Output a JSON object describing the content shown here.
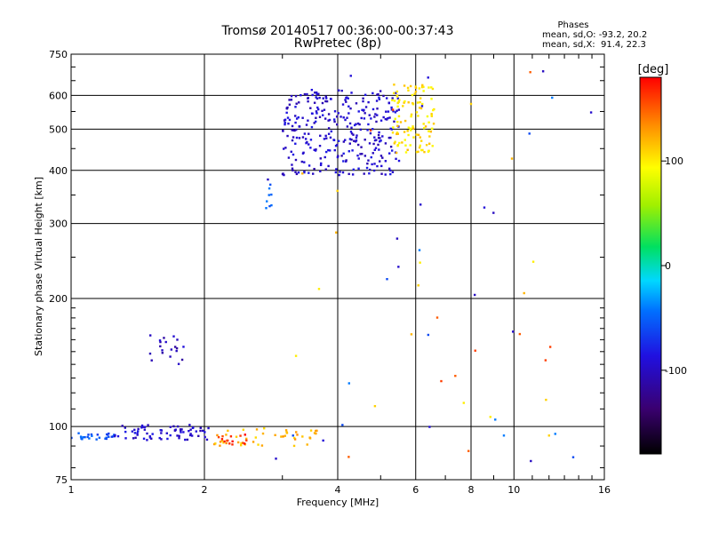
{
  "chart_data": {
    "type": "scatter",
    "title": "Tromsø 20140517 00:36:00-00:37:43",
    "subtitle": "RwPretec (8p)",
    "xlabel": "Frequency [MHz]",
    "ylabel": "Stationary phase Virtual Height [km]",
    "x_scale": "log2",
    "y_scale": "log",
    "xlim": [
      1,
      16
    ],
    "ylim": [
      75,
      750
    ],
    "x_ticks": [
      1,
      2,
      4,
      6,
      8,
      10,
      16
    ],
    "x_tick_labels": [
      "1",
      "2",
      "4",
      "6",
      "8",
      "10",
      "16"
    ],
    "y_ticks": [
      75,
      100,
      200,
      300,
      400,
      500,
      600,
      750
    ],
    "y_tick_labels": [
      "75",
      "100",
      "200",
      "300",
      "400",
      "500",
      "600",
      "750"
    ],
    "grid": true,
    "phases_box": {
      "title": "Phases",
      "line1": "mean, sd,O: -93.2, 20.2",
      "line2": "mean, sd,X:  91.4, 22.3"
    },
    "colorbar": {
      "label": "[deg]",
      "range": [
        -180,
        180
      ],
      "ticks": [
        100,
        0,
        -100
      ],
      "tick_labels": [
        "100",
        "0",
        "-100"
      ],
      "colormap": "rainbow (black-purple-blue-cyan-green-yellow-orange-red)"
    },
    "color_key": "phase_deg",
    "groups": [
      {
        "description": "E-layer cyan",
        "x_range": [
          1.0,
          1.25
        ],
        "y_range": [
          93,
          97
        ],
        "phase_deg": -55,
        "count": 25
      },
      {
        "description": "E-layer blue",
        "x_range": [
          1.25,
          2.05
        ],
        "y_range": [
          93,
          101
        ],
        "phase_deg": -95,
        "count": 70
      },
      {
        "description": "E-layer orange/yellow",
        "x_range": [
          2.1,
          3.6
        ],
        "y_range": [
          90,
          100
        ],
        "phase_deg": 120,
        "count": 45
      },
      {
        "description": "E-layer red",
        "x_range": [
          2.15,
          2.5
        ],
        "y_range": [
          90,
          96
        ],
        "phase_deg": 165,
        "count": 15
      },
      {
        "description": "Es trace blue",
        "x_range": [
          1.5,
          1.8
        ],
        "y_range": [
          140,
          165
        ],
        "phase_deg": -100,
        "count": 20
      },
      {
        "description": "F-layer O-trace blue",
        "x_range": [
          3.0,
          5.5
        ],
        "y_range": [
          390,
          620
        ],
        "phase_deg": -95,
        "count": 320
      },
      {
        "description": "F-layer X-trace yellow",
        "x_range": [
          5.3,
          6.6
        ],
        "y_range": [
          440,
          640
        ],
        "phase_deg": 105,
        "count": 110
      },
      {
        "description": "F-layer cyan near 2.8 MHz",
        "x_range": [
          2.75,
          2.85
        ],
        "y_range": [
          320,
          380
        ],
        "phase_deg": -50,
        "count": 8
      },
      {
        "description": "scattered noise",
        "x_range": [
          2.7,
          15
        ],
        "y_range": [
          80,
          700
        ],
        "phase_deg": "mixed",
        "count": 60
      }
    ]
  }
}
